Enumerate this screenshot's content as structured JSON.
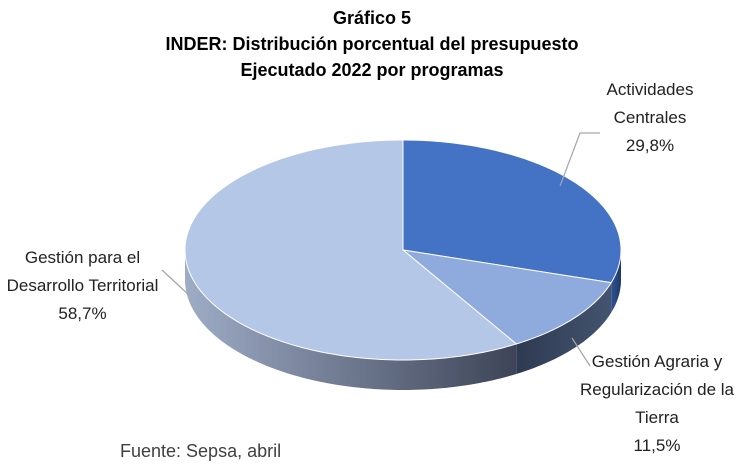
{
  "chart_data": {
    "type": "pie3d",
    "title": "Gráfico 5",
    "subtitle": [
      "INDER: Distribución porcentual del presupuesto",
      "Ejecutado 2022 por programas"
    ],
    "categories": [
      "Actividades Centrales",
      "Gestión Agraria y Regularización de la Tierra",
      "Gestión para el Desarrollo Territorial"
    ],
    "values": [
      29.8,
      11.5,
      58.7
    ],
    "value_labels": [
      "29,8%",
      "11,5%",
      "58,7%"
    ],
    "colors": [
      "#4472c4",
      "#8faadc",
      "#b4c7e7"
    ],
    "note": "Fuente: Sepsa, abril"
  }
}
